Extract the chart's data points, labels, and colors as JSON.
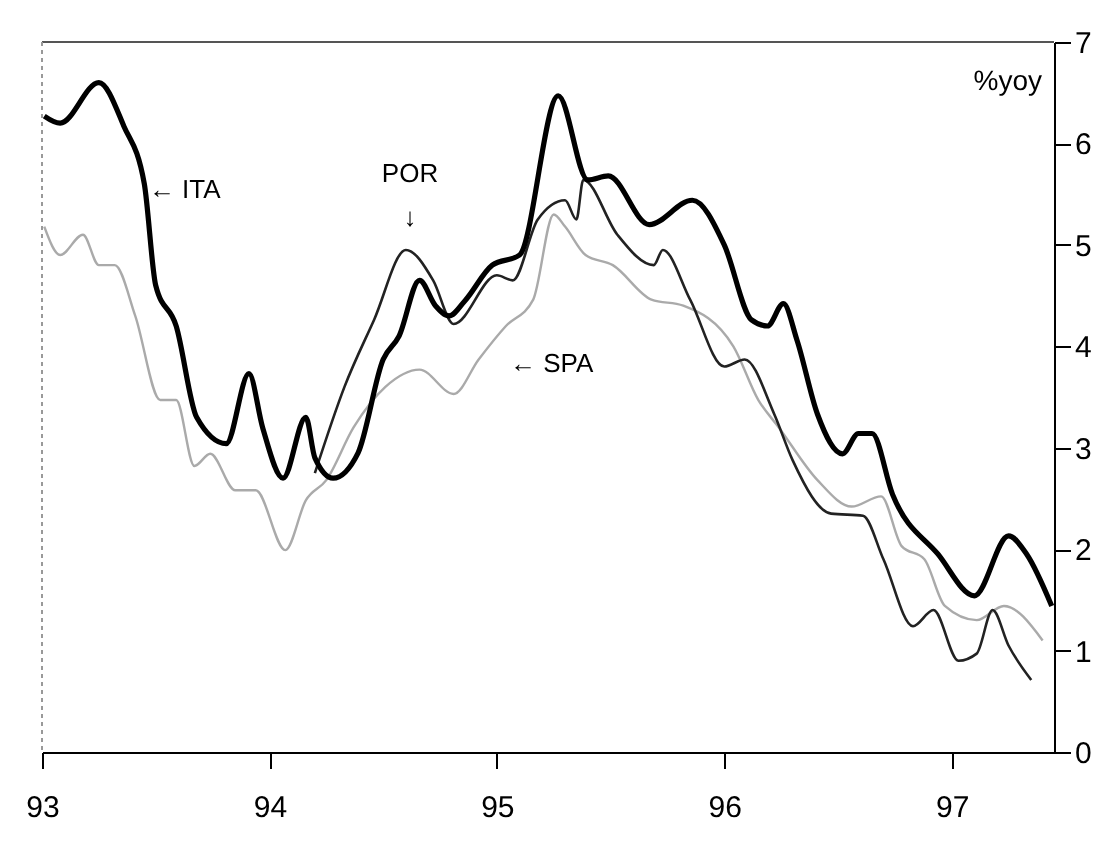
{
  "chart_data": {
    "type": "line",
    "ylabel": "%yoy",
    "xlim": [
      93,
      97.45
    ],
    "xticks": [
      93,
      94,
      95,
      96,
      97
    ],
    "ylim": [
      0,
      7
    ],
    "yticks": [
      0,
      1,
      2,
      3,
      4,
      5,
      6,
      7
    ],
    "grid": false,
    "marker": "none",
    "line_style": "solid",
    "series": [
      {
        "color": "#aaaaaa",
        "x": [
          93.01,
          93.08,
          93.18,
          93.25,
          93.32,
          93.41,
          93.52,
          93.59,
          93.67,
          93.74,
          93.85,
          93.94,
          94.07,
          94.16,
          94.25,
          94.37,
          94.51,
          94.66,
          94.81,
          94.92,
          95.04,
          95.16,
          95.25,
          95.3,
          95.39,
          95.51,
          95.68,
          95.82,
          96.04,
          96.15,
          96.24,
          96.41,
          96.56,
          96.69,
          96.78,
          96.88,
          96.97,
          97.11,
          97.23,
          97.4
        ],
        "values": [
          5.18,
          4.9,
          5.1,
          4.8,
          4.8,
          4.3,
          3.47,
          3.47,
          2.82,
          2.94,
          2.58,
          2.58,
          1.99,
          2.48,
          2.68,
          3.2,
          3.6,
          3.77,
          3.53,
          3.87,
          4.2,
          4.46,
          5.3,
          5.18,
          4.9,
          4.8,
          4.46,
          4.4,
          4.0,
          3.47,
          3.2,
          2.68,
          2.42,
          2.52,
          2.03,
          1.9,
          1.44,
          1.3,
          1.44,
          1.1
        ]
      },
      {
        "color": "#222222",
        "x": [
          94.2,
          94.33,
          94.46,
          94.6,
          94.72,
          94.81,
          95.0,
          95.07,
          95.18,
          95.3,
          95.35,
          95.38,
          95.53,
          95.69,
          95.73,
          95.85,
          96.0,
          96.09,
          96.22,
          96.3,
          96.47,
          96.61,
          96.7,
          96.83,
          96.92,
          97.03,
          97.11,
          97.18,
          97.25,
          97.35
        ],
        "values": [
          2.75,
          3.6,
          4.26,
          4.95,
          4.65,
          4.22,
          4.7,
          4.65,
          5.25,
          5.44,
          5.25,
          5.64,
          5.1,
          4.8,
          4.95,
          4.46,
          3.8,
          3.87,
          3.33,
          2.88,
          2.35,
          2.33,
          1.9,
          1.24,
          1.4,
          0.9,
          0.97,
          1.4,
          1.05,
          0.71
        ]
      },
      {
        "color": "#000000",
        "x": [
          93.01,
          93.08,
          93.25,
          93.36,
          93.45,
          93.5,
          93.59,
          93.68,
          93.81,
          93.91,
          93.97,
          94.06,
          94.16,
          94.2,
          94.28,
          94.39,
          94.5,
          94.57,
          94.66,
          94.73,
          94.79,
          94.86,
          94.98,
          95.1,
          95.27,
          95.4,
          95.49,
          95.67,
          95.86,
          96.0,
          96.12,
          96.19,
          96.26,
          96.32,
          96.41,
          96.52,
          96.59,
          96.65,
          96.74,
          96.94,
          97.1,
          97.25,
          97.33,
          97.44
        ],
        "values": [
          6.27,
          6.2,
          6.6,
          6.17,
          5.6,
          4.6,
          4.2,
          3.3,
          3.04,
          3.73,
          3.2,
          2.7,
          3.3,
          2.9,
          2.7,
          2.95,
          3.87,
          4.1,
          4.65,
          4.4,
          4.3,
          4.45,
          4.8,
          4.9,
          6.47,
          5.64,
          5.68,
          5.2,
          5.44,
          5.0,
          4.26,
          4.2,
          4.42,
          4.06,
          3.33,
          2.94,
          3.14,
          3.14,
          2.54,
          1.95,
          1.54,
          2.13,
          1.95,
          1.44
        ]
      }
    ],
    "annotations": [
      {
        "text": "← ITA",
        "x": 93.47,
        "y": 5.54
      },
      "POR",
      "↓",
      "← SPA"
    ]
  }
}
